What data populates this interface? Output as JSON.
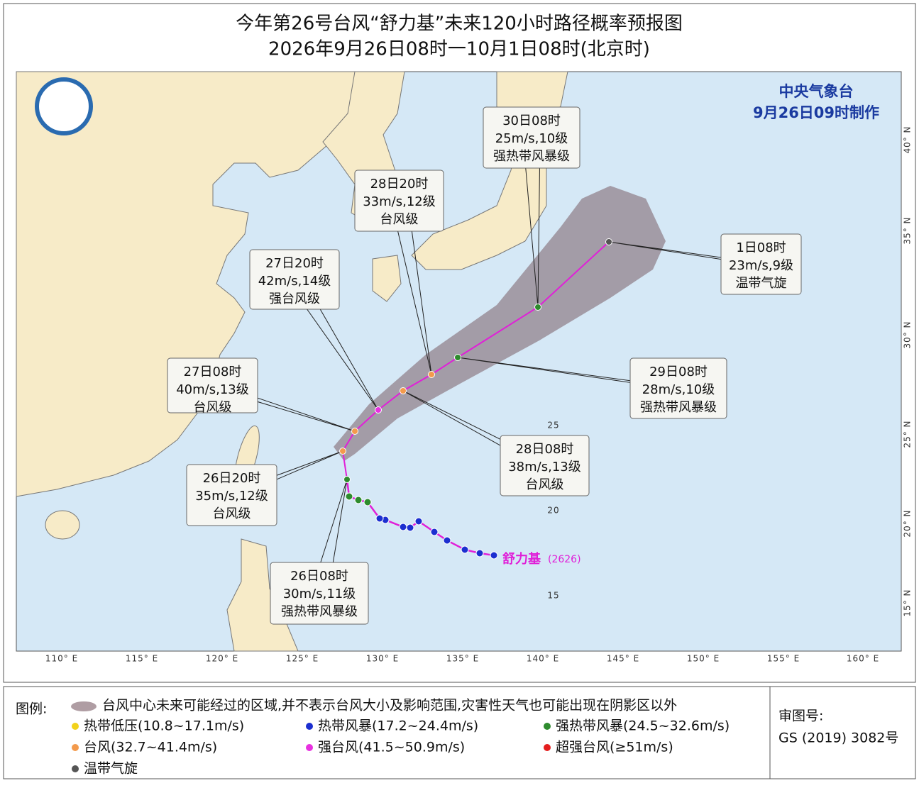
{
  "header": {
    "title": "今年第26号台风“舒力基”未来120小时路径概率预报图",
    "subtitle": "2026年9月26日08时一10月1日08时(北京时)"
  },
  "issuer": {
    "agency": "中央气象台",
    "issued": "9月26日09时制作"
  },
  "callouts": [
    {
      "time": "26日08时",
      "wind": "30m/s,11级",
      "category": "强热带风暴级"
    },
    {
      "time": "26日20时",
      "wind": "35m/s,12级",
      "category": "台风级"
    },
    {
      "time": "27日08时",
      "wind": "40m/s,13级",
      "category": "台风级"
    },
    {
      "time": "27日20时",
      "wind": "42m/s,14级",
      "category": "强台风级"
    },
    {
      "time": "28日08时",
      "wind": "38m/s,13级",
      "category": "台风级"
    },
    {
      "time": "28日20时",
      "wind": "33m/s,12级",
      "category": "台风级"
    },
    {
      "time": "29日08时",
      "wind": "28m/s,10级",
      "category": "强热带风暴级"
    },
    {
      "time": "30日08时",
      "wind": "25m/s,10级",
      "category": "强热带风暴级"
    },
    {
      "time": "1日08时",
      "wind": "23m/s,9级",
      "category": "温带气旋"
    }
  ],
  "storm_label": {
    "name": "舒力基",
    "code": "(2626)"
  },
  "map": {
    "longitude_labels": [
      "110° E",
      "115° E",
      "120° E",
      "125° E",
      "130° E",
      "135° E",
      "140° E",
      "145° E",
      "150° E",
      "155° E",
      "160° E"
    ],
    "latitude_labels": [
      "40° N",
      "35° N",
      "30° N",
      "25° N",
      "20° N",
      "15° N"
    ],
    "inner_labels": [
      "25",
      "20",
      "15"
    ]
  },
  "legend": {
    "title": "图例:",
    "cone": "台风中心未来可能经过的区域,并不表示台风大小及影响范围,灾害性天气也可能出现在阴影区以外",
    "items": [
      {
        "label": "热带低压(10.8~17.1m/s)",
        "color": "#f2d21b"
      },
      {
        "label": "热带风暴(17.2~24.4m/s)",
        "color": "#1c2fd0"
      },
      {
        "label": "强热带风暴(24.5~32.6m/s)",
        "color": "#2e8b2e"
      },
      {
        "label": "台风(32.7~41.4m/s)",
        "color": "#f39a4c"
      },
      {
        "label": "强台风(41.5~50.9m/s)",
        "color": "#e830e0"
      },
      {
        "label": "超强台风(≥51m/s)",
        "color": "#e41e1e"
      },
      {
        "label": "温带气旋",
        "color": "#555555"
      }
    ]
  },
  "approval": {
    "label": "审图号:",
    "number": "GS (2019) 3082号"
  }
}
